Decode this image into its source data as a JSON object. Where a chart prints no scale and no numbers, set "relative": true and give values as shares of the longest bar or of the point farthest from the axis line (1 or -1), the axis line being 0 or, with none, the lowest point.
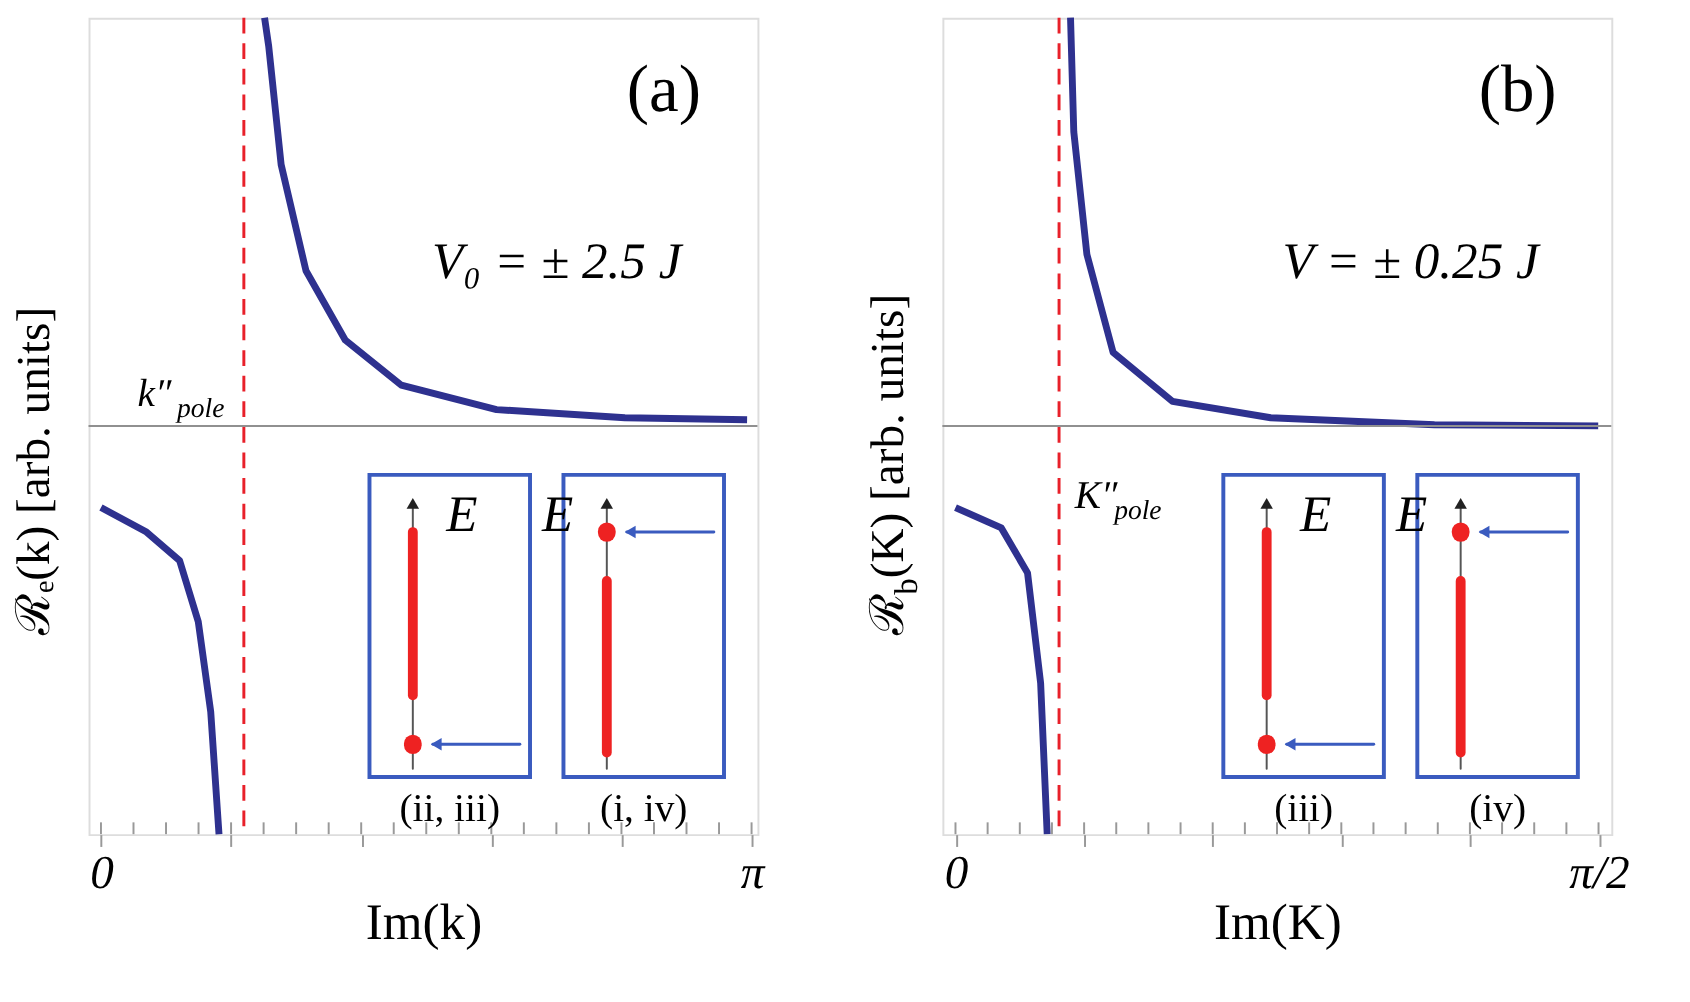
{
  "chart_data": [
    {
      "type": "line",
      "relative": true,
      "xlabel": "Im(k)",
      "ylabel": "ℛₑ(k) [arb. units]",
      "xlim": [
        -0.06,
        3.17
      ],
      "xticks": [
        {
          "value": 0,
          "label": "0"
        },
        {
          "value": 0.1571,
          "label": null
        },
        {
          "value": 0.3142,
          "label": null
        },
        {
          "value": 0.4712,
          "label": null
        },
        {
          "value": 0.6283,
          "label": null
        },
        {
          "value": 0.7854,
          "label": null
        },
        {
          "value": 0.9425,
          "label": null
        },
        {
          "value": 1.0996,
          "label": null
        },
        {
          "value": 1.2566,
          "label": null
        },
        {
          "value": 1.4137,
          "label": null
        },
        {
          "value": 1.5708,
          "label": null
        },
        {
          "value": 1.7279,
          "label": null
        },
        {
          "value": 1.885,
          "label": null
        },
        {
          "value": 2.042,
          "label": null
        },
        {
          "value": 2.1991,
          "label": null
        },
        {
          "value": 2.3562,
          "label": null
        },
        {
          "value": 2.5133,
          "label": null
        },
        {
          "value": 2.6704,
          "label": null
        },
        {
          "value": 2.8274,
          "label": null
        },
        {
          "value": 2.9845,
          "label": null
        },
        {
          "value": 3.1416,
          "label": "π"
        }
      ],
      "series": [
        {
          "color": "#2e318f",
          "x": [
            0.0,
            0.22,
            0.38,
            0.47,
            0.53,
            0.57,
            0.68,
            0.79,
            0.81,
            0.87,
            0.99,
            1.18,
            1.45,
            1.91,
            2.53,
            3.12
          ],
          "values": [
            -0.2,
            -0.26,
            -0.33,
            -0.48,
            -0.7,
            -1.0,
            null,
            1.0,
            0.93,
            0.64,
            0.38,
            0.21,
            0.1,
            0.04,
            0.02,
            0.015
          ]
        }
      ],
      "ref_lines": [
        {
          "axis": "y",
          "value": 0,
          "color": "#909090",
          "line_style": "solid"
        },
        {
          "axis": "x",
          "value": 0.69,
          "label": "k″$_{pole}$",
          "color": "#e8202a",
          "line_style": "dashed"
        }
      ],
      "annotations": [
        "(a)",
        "V₀ = ± 2.5 J",
        "E",
        "E",
        "(ii, iii)",
        "(i, iv)"
      ],
      "grid": false,
      "tick_labels": "x",
      "line_style": "solid",
      "marker": "none"
    },
    {
      "type": "line",
      "relative": true,
      "xlabel": "Im(K)",
      "ylabel": "ℛ$_{b}$(K) [arb. units]",
      "xlim": [
        -0.032,
        1.602
      ],
      "xticks": [
        {
          "value": 0,
          "label": "0"
        },
        {
          "value": 0.0785,
          "label": null
        },
        {
          "value": 0.1571,
          "label": null
        },
        {
          "value": 0.2356,
          "label": null
        },
        {
          "value": 0.3142,
          "label": null
        },
        {
          "value": 0.3927,
          "label": null
        },
        {
          "value": 0.4712,
          "label": null
        },
        {
          "value": 0.5498,
          "label": null
        },
        {
          "value": 0.6283,
          "label": null
        },
        {
          "value": 0.7069,
          "label": null
        },
        {
          "value": 0.7854,
          "label": null
        },
        {
          "value": 0.8639,
          "label": null
        },
        {
          "value": 0.9425,
          "label": null
        },
        {
          "value": 1.021,
          "label": null
        },
        {
          "value": 1.0996,
          "label": null
        },
        {
          "value": 1.1781,
          "label": null
        },
        {
          "value": 1.2566,
          "label": null
        },
        {
          "value": 1.3352,
          "label": null
        },
        {
          "value": 1.4137,
          "label": null
        },
        {
          "value": 1.4923,
          "label": null
        },
        {
          "value": 1.5708,
          "label": "π/2"
        }
      ],
      "series": [
        {
          "color": "#2e318f",
          "x": [
            0.0,
            0.112,
            0.176,
            0.208,
            0.224,
            0.25,
            0.281,
            0.289,
            0.321,
            0.385,
            0.53,
            0.77,
            1.17,
            1.57
          ],
          "values": [
            -0.2,
            -0.25,
            -0.36,
            -0.63,
            -1.0,
            null,
            1.0,
            0.72,
            0.42,
            0.18,
            0.06,
            0.02,
            0.003,
            0.0
          ]
        }
      ],
      "ref_lines": [
        {
          "axis": "y",
          "value": 0,
          "color": "#909090",
          "line_style": "solid"
        },
        {
          "axis": "x",
          "value": 0.253,
          "label": "K″$_{pole}$",
          "color": "#e8202a",
          "line_style": "dashed"
        }
      ],
      "annotations": [
        "(b)",
        "V  = ± 0.25 J",
        "E",
        "E",
        "(iii)",
        "(iv)"
      ],
      "grid": false,
      "tick_labels": "x",
      "line_style": "solid",
      "marker": "none"
    }
  ]
}
